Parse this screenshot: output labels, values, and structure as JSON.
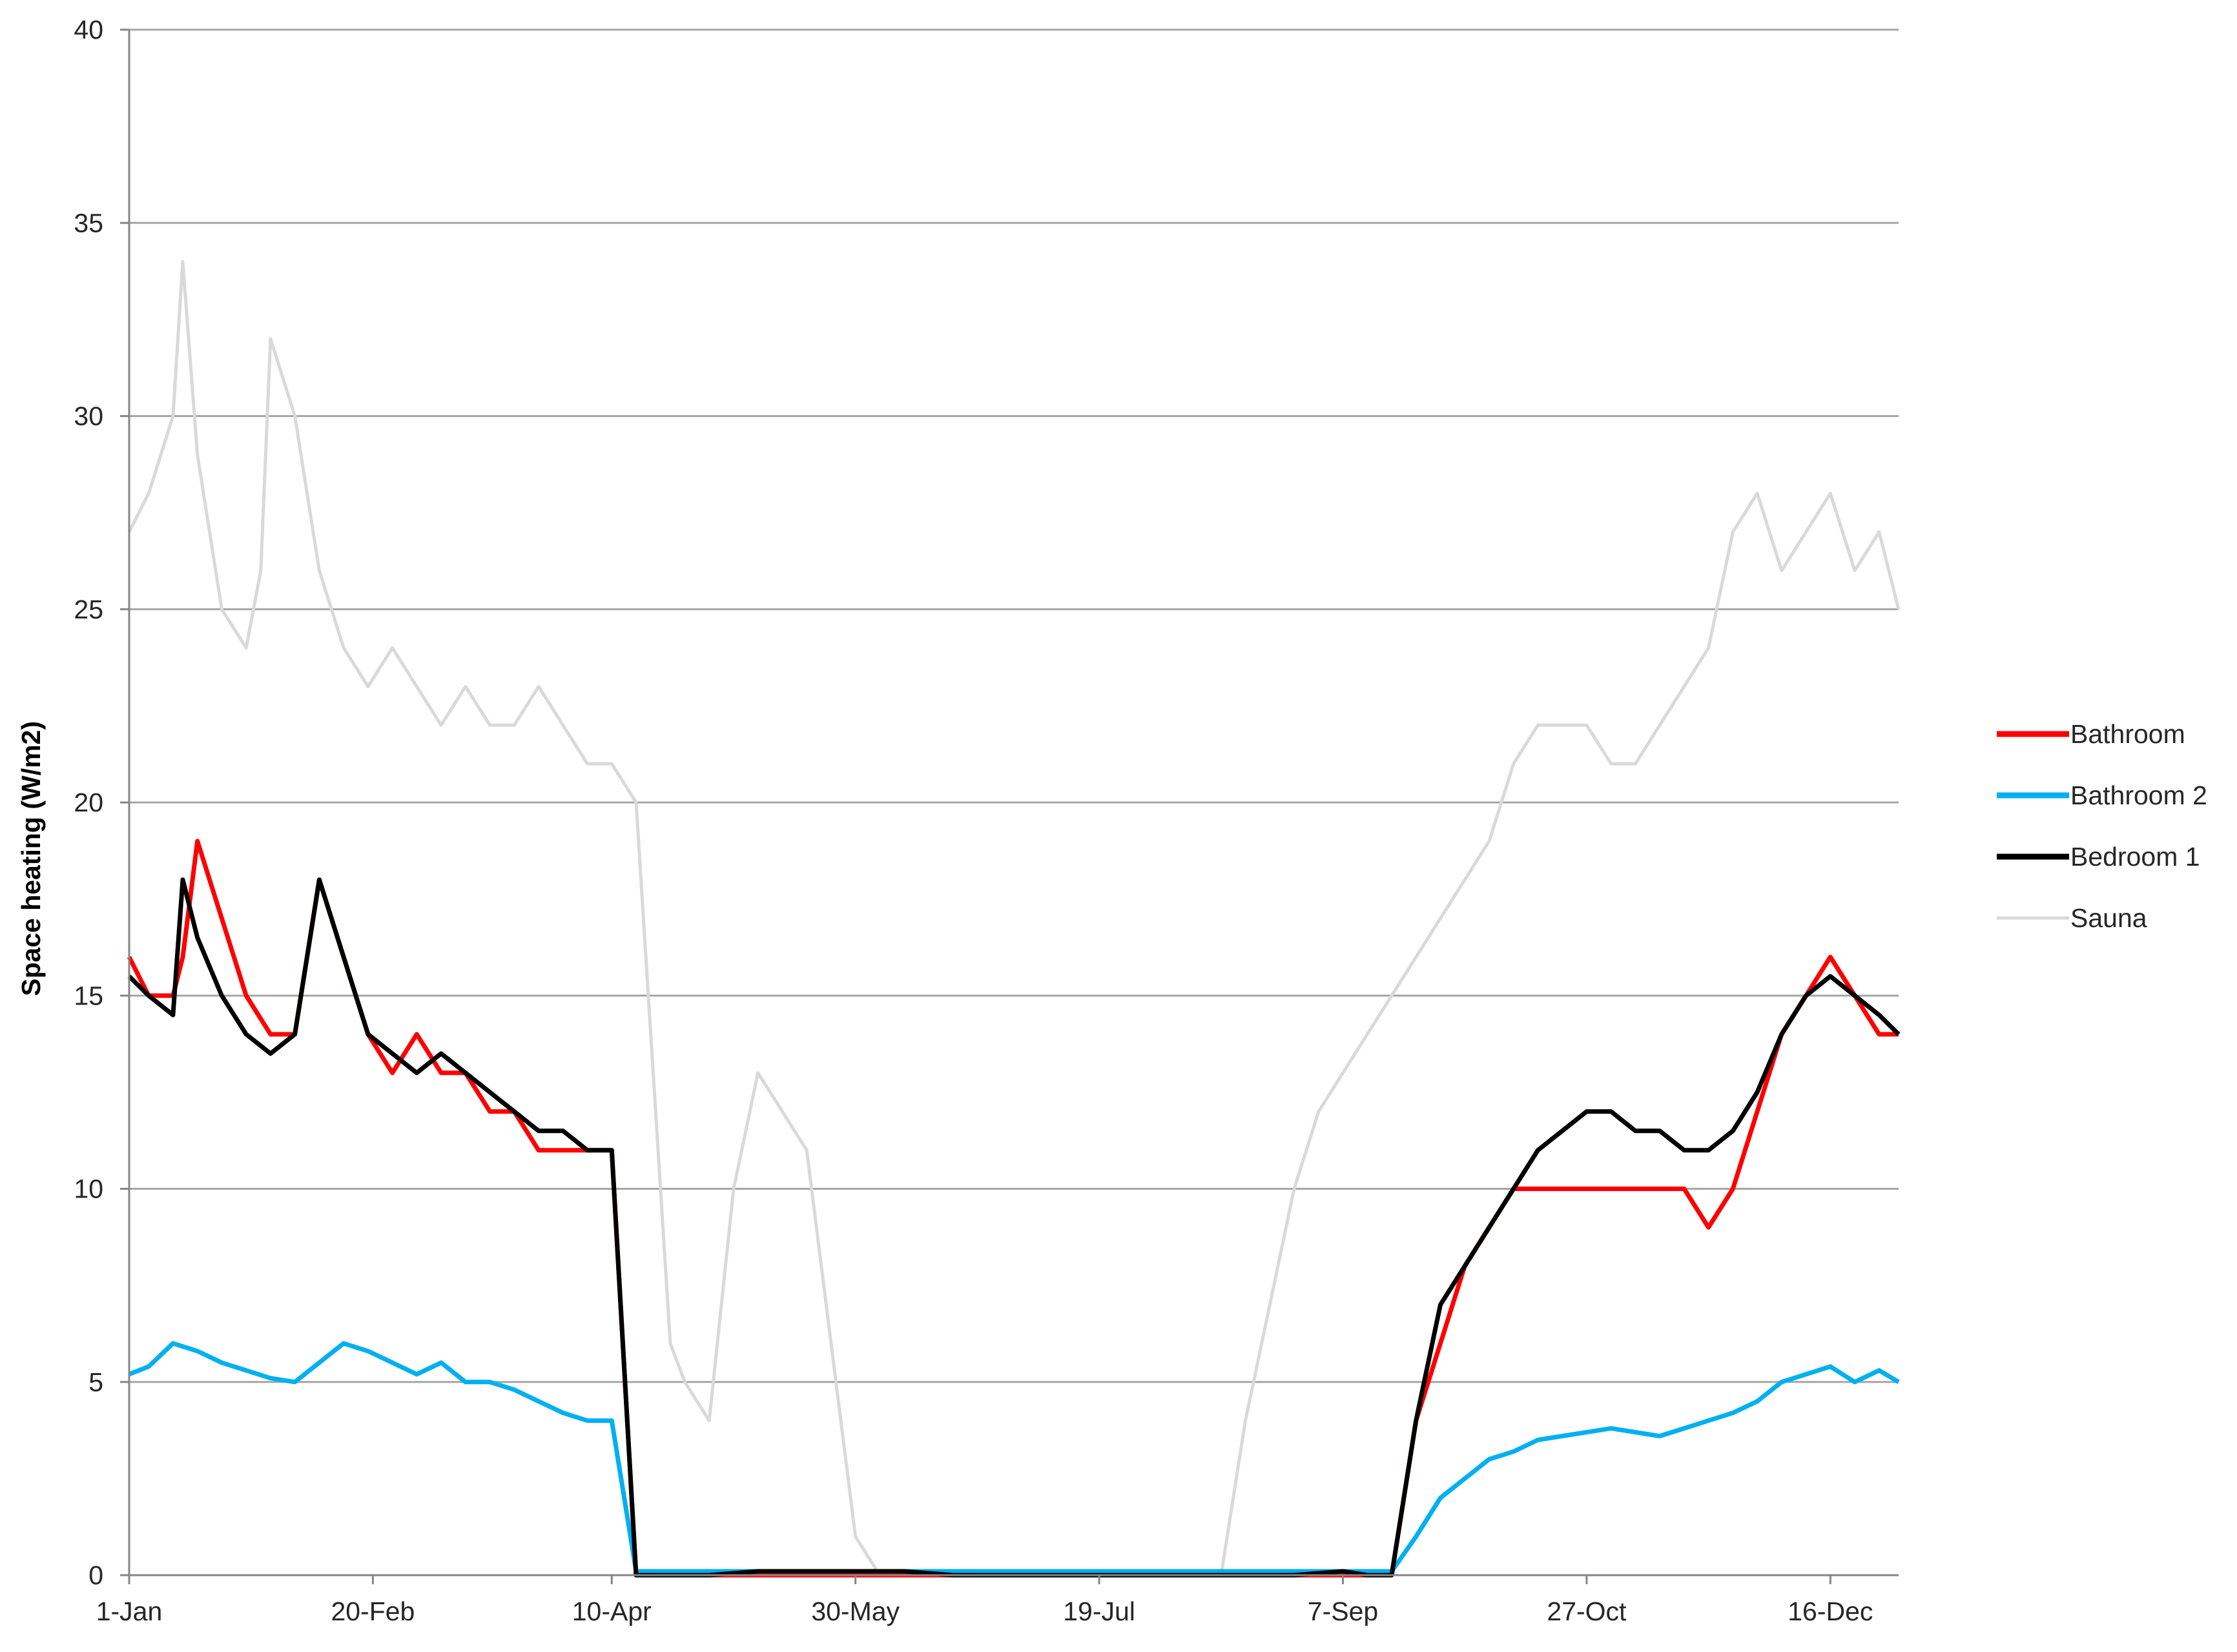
{
  "chart_data": {
    "type": "line",
    "title": "",
    "xlabel": "",
    "ylabel": "Space heating (W/m2)",
    "ylim": [
      0,
      40
    ],
    "yticks": [
      0,
      5,
      10,
      15,
      20,
      25,
      30,
      35,
      40
    ],
    "x_domain_days": [
      1,
      364
    ],
    "xticks": [
      {
        "day": 1,
        "label": "1-Jan"
      },
      {
        "day": 51,
        "label": "20-Feb"
      },
      {
        "day": 100,
        "label": "10-Apr"
      },
      {
        "day": 150,
        "label": "30-May"
      },
      {
        "day": 200,
        "label": "19-Jul"
      },
      {
        "day": 250,
        "label": "7-Sep"
      },
      {
        "day": 300,
        "label": "27-Oct"
      },
      {
        "day": 350,
        "label": "16-Dec"
      }
    ],
    "grid": "horizontal",
    "legend_position": "right",
    "series": [
      {
        "name": "Sauna",
        "color": "#d9d9d9",
        "x": [
          1,
          5,
          10,
          12,
          15,
          20,
          25,
          28,
          30,
          35,
          40,
          45,
          50,
          55,
          60,
          65,
          70,
          75,
          80,
          85,
          90,
          95,
          100,
          105,
          108,
          110,
          112,
          115,
          120,
          125,
          130,
          135,
          140,
          145,
          150,
          155,
          160,
          165,
          170,
          175,
          180,
          185,
          190,
          195,
          200,
          205,
          210,
          215,
          220,
          225,
          230,
          235,
          240,
          245,
          250,
          255,
          260,
          265,
          270,
          275,
          280,
          285,
          290,
          295,
          300,
          305,
          310,
          315,
          320,
          325,
          330,
          335,
          340,
          345,
          350,
          355,
          360,
          364
        ],
        "y": [
          27,
          28,
          30,
          34,
          29,
          25,
          24,
          26,
          32,
          30,
          26,
          24,
          23,
          24,
          23,
          22,
          23,
          22,
          22,
          23,
          22,
          21,
          21,
          20,
          14,
          10,
          6,
          5,
          4,
          10,
          13,
          12,
          11,
          6,
          1,
          0,
          0,
          0,
          0,
          0,
          0,
          0,
          0,
          0,
          0,
          0,
          0,
          0,
          0,
          0,
          4,
          7,
          10,
          12,
          13,
          14,
          15,
          16,
          17,
          18,
          19,
          21,
          22,
          22,
          22,
          21,
          21,
          22,
          23,
          24,
          27,
          28,
          26,
          27,
          28,
          26,
          27,
          25
        ]
      },
      {
        "name": "Bathroom",
        "color": "#ff0000",
        "x": [
          1,
          5,
          10,
          12,
          15,
          20,
          25,
          30,
          35,
          40,
          45,
          50,
          55,
          60,
          65,
          70,
          75,
          80,
          85,
          90,
          95,
          100,
          105,
          110,
          115,
          120,
          130,
          140,
          150,
          160,
          170,
          180,
          190,
          200,
          210,
          220,
          230,
          240,
          250,
          255,
          260,
          265,
          270,
          275,
          280,
          285,
          290,
          295,
          300,
          305,
          310,
          315,
          320,
          325,
          330,
          335,
          340,
          345,
          350,
          355,
          360,
          364
        ],
        "y": [
          16,
          15,
          15,
          16,
          19,
          17,
          15,
          14,
          14,
          18,
          16,
          14,
          13,
          14,
          13,
          13,
          12,
          12,
          11,
          11,
          11,
          11,
          0,
          0,
          0,
          0,
          0,
          0,
          0,
          0,
          0,
          0,
          0,
          0,
          0,
          0,
          0,
          0,
          0,
          0,
          0,
          4,
          6,
          8,
          9,
          10,
          10,
          10,
          10,
          10,
          10,
          10,
          10,
          9,
          10,
          12,
          14,
          15,
          16,
          15,
          14,
          14
        ]
      },
      {
        "name": "Bathroom 2",
        "color": "#00b0f0",
        "x": [
          1,
          5,
          10,
          15,
          20,
          25,
          30,
          35,
          40,
          45,
          50,
          55,
          60,
          65,
          70,
          75,
          80,
          85,
          90,
          95,
          100,
          105,
          110,
          120,
          130,
          140,
          150,
          160,
          170,
          180,
          190,
          200,
          210,
          220,
          230,
          240,
          250,
          255,
          260,
          265,
          270,
          275,
          280,
          285,
          290,
          295,
          300,
          305,
          310,
          315,
          320,
          325,
          330,
          335,
          340,
          345,
          350,
          355,
          360,
          364
        ],
        "y": [
          5.2,
          5.4,
          6,
          5.8,
          5.5,
          5.3,
          5.1,
          5,
          5.5,
          6,
          5.8,
          5.5,
          5.2,
          5.5,
          5,
          5,
          4.8,
          4.5,
          4.2,
          4,
          4,
          0.1,
          0.1,
          0.1,
          0.1,
          0.1,
          0.1,
          0.1,
          0.1,
          0.1,
          0.1,
          0.1,
          0.1,
          0.1,
          0.1,
          0.1,
          0.1,
          0.1,
          0.1,
          1,
          2,
          2.5,
          3,
          3.2,
          3.5,
          3.6,
          3.7,
          3.8,
          3.7,
          3.6,
          3.8,
          4,
          4.2,
          4.5,
          5,
          5.2,
          5.4,
          5,
          5.3,
          5
        ]
      },
      {
        "name": "Bedroom 1",
        "color": "#000000",
        "x": [
          1,
          5,
          10,
          12,
          15,
          20,
          25,
          30,
          35,
          40,
          45,
          50,
          55,
          60,
          65,
          70,
          75,
          80,
          85,
          90,
          95,
          100,
          105,
          110,
          120,
          130,
          140,
          150,
          160,
          170,
          180,
          190,
          200,
          210,
          220,
          230,
          240,
          250,
          255,
          260,
          265,
          270,
          275,
          280,
          285,
          290,
          295,
          300,
          305,
          310,
          315,
          320,
          325,
          330,
          335,
          340,
          345,
          350,
          355,
          360,
          364
        ],
        "y": [
          15.5,
          15,
          14.5,
          18,
          16.5,
          15,
          14,
          13.5,
          14,
          18,
          16,
          14,
          13.5,
          13,
          13.5,
          13,
          12.5,
          12,
          11.5,
          11.5,
          11,
          11,
          0,
          0,
          0,
          0.1,
          0.1,
          0.1,
          0.1,
          0,
          0,
          0,
          0,
          0,
          0,
          0,
          0,
          0.1,
          0,
          0,
          4,
          7,
          8,
          9,
          10,
          11,
          11.5,
          12,
          12,
          11.5,
          11.5,
          11,
          11,
          11.5,
          12.5,
          14,
          15,
          15.5,
          15,
          14.5,
          14
        ]
      }
    ]
  },
  "legend": {
    "items": [
      {
        "label": "Bathroom",
        "color": "#ff0000"
      },
      {
        "label": "Bathroom 2",
        "color": "#00b0f0"
      },
      {
        "label": "Bedroom 1",
        "color": "#000000"
      },
      {
        "label": "Sauna",
        "color": "#d9d9d9"
      }
    ]
  }
}
